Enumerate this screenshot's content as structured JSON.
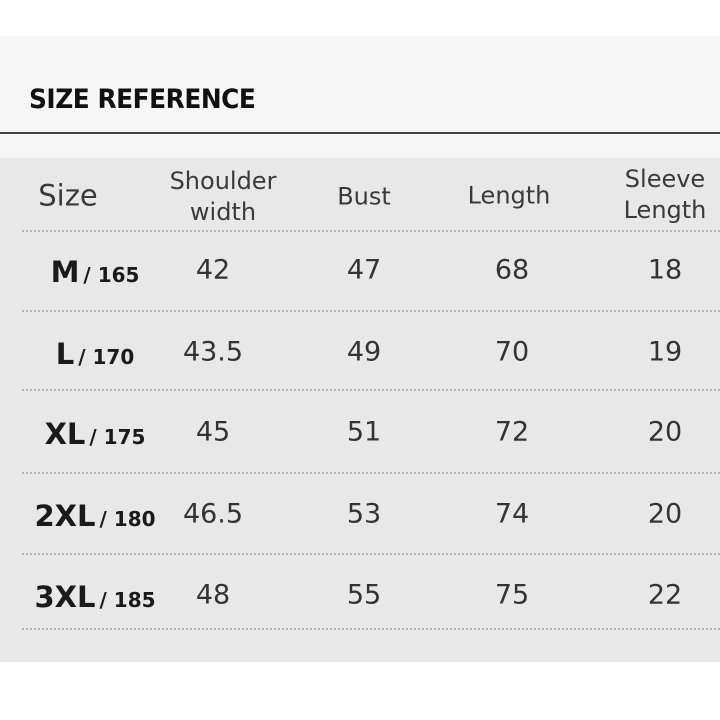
{
  "title": "SIZE REFERENCE",
  "table": {
    "headers": [
      "Size",
      "Shoulder\nwidth",
      "Bust",
      "Length",
      "Sleeve\nLength"
    ],
    "header_lines": {
      "size": "Size",
      "shoulder_1": "Shoulder",
      "shoulder_2": "width",
      "bust": "Bust",
      "length": "Length",
      "sleeve_1": "Sleeve",
      "sleeve_2": "Length"
    },
    "rows": [
      {
        "size": "M",
        "height": "/ 165",
        "shoulder": "42",
        "bust": "47",
        "length": "68",
        "sleeve": "18"
      },
      {
        "size": "L",
        "height": "/ 170",
        "shoulder": "43.5",
        "bust": "49",
        "length": "70",
        "sleeve": "19"
      },
      {
        "size": "XL",
        "height": "/ 175",
        "shoulder": "45",
        "bust": "51",
        "length": "72",
        "sleeve": "20"
      },
      {
        "size": "2XL",
        "height": "/ 180",
        "shoulder": "46.5",
        "bust": "53",
        "length": "74",
        "sleeve": "20"
      },
      {
        "size": "3XL",
        "height": "/ 185",
        "shoulder": "48",
        "bust": "55",
        "length": "75",
        "sleeve": "22"
      }
    ]
  },
  "colors": {
    "table_bg": "#e8e8e8",
    "text": "#333333",
    "rule": "#444444"
  }
}
